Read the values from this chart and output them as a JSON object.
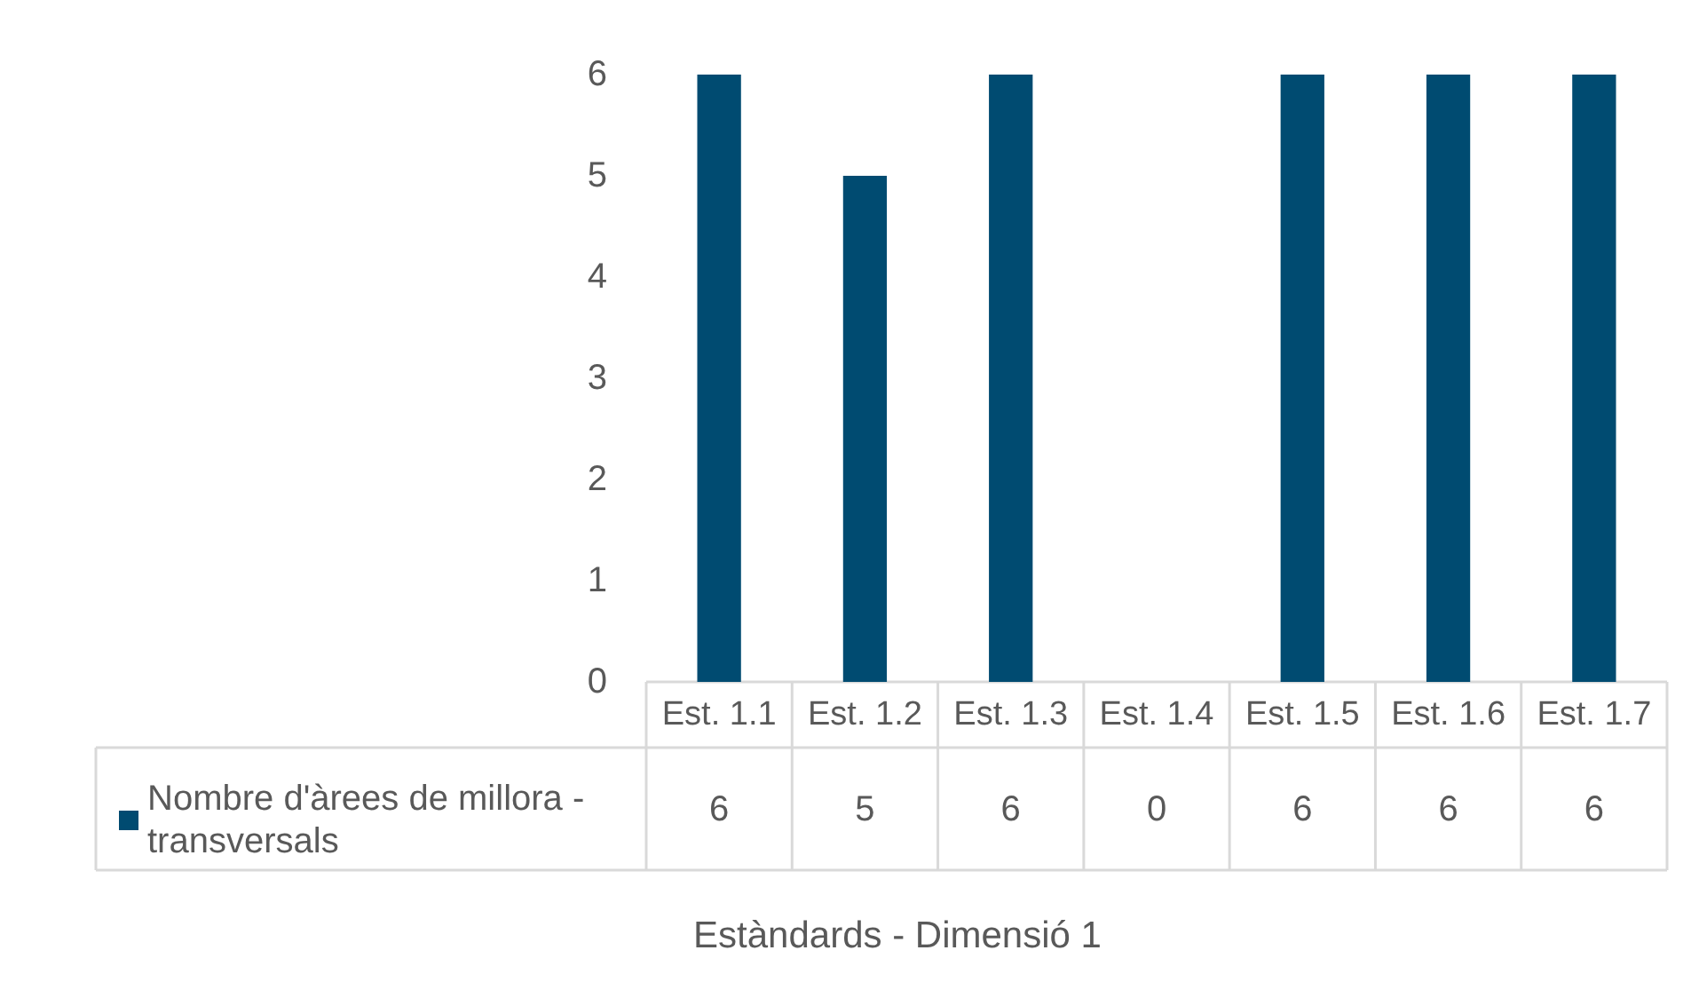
{
  "chart_data": {
    "type": "bar",
    "annotations": [
      "Estàndards - Dimensió 1"
    ],
    "categories": [
      "Est. 1.1",
      "Est. 1.2",
      "Est. 1.3",
      "Est. 1.4",
      "Est. 1.5",
      "Est. 1.6",
      "Est. 1.7"
    ],
    "series": [
      {
        "name": "Nombre d'àrees de millora - transversals",
        "color": "#004b71",
        "values": [
          6,
          5,
          6,
          0,
          6,
          6,
          6
        ]
      }
    ],
    "ylim": [
      0,
      6
    ],
    "yticks": [
      0,
      1,
      2,
      3,
      4,
      5,
      6
    ],
    "grid": false,
    "legend": "bottom left",
    "data_labels": true
  }
}
